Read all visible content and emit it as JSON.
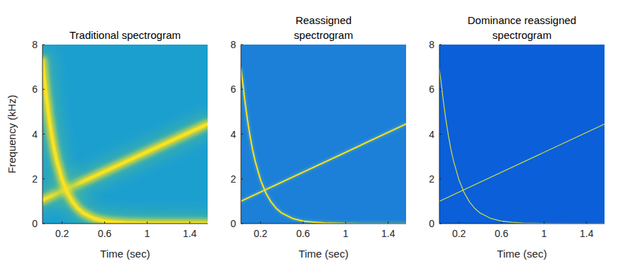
{
  "chart_data": [
    {
      "type": "line",
      "title": "Traditional spectrogram",
      "xlabel": "Time (sec)",
      "ylabel": "Frequency (kHz)",
      "xlim": [
        0.016,
        1.568
      ],
      "xticks": [
        0.2,
        0.6,
        1,
        1.4
      ],
      "ylim": [
        0,
        8
      ],
      "yticks": [
        0,
        2,
        4,
        6,
        8
      ],
      "grid": false,
      "series": [
        {
          "color": "#f9e21f",
          "x": [
            0.016,
            1.568
          ],
          "values": [
            1.05,
            4.45
          ]
        },
        {
          "color": "#f9e21f",
          "x": [
            0.016,
            0.03,
            0.05,
            0.075,
            0.1,
            0.125,
            0.15,
            0.2,
            0.25,
            0.3,
            0.35,
            0.4,
            0.5,
            0.6,
            0.7,
            0.8,
            1.0,
            1.2,
            1.568
          ],
          "values": [
            7.3,
            6.6,
            5.73,
            4.79,
            4.0,
            3.35,
            2.8,
            1.96,
            1.37,
            0.96,
            0.67,
            0.47,
            0.23,
            0.11,
            0.06,
            0.03,
            0.01,
            0,
            0
          ]
        }
      ]
    },
    {
      "type": "line",
      "title": "Reassigned spectrogram",
      "xlabel": "Time (sec)",
      "xlim": [
        0.016,
        1.568
      ],
      "xticks": [
        0.2,
        0.6,
        1,
        1.4
      ],
      "ylim": [
        0,
        8
      ],
      "yticks": [
        0,
        2,
        4,
        6,
        8
      ],
      "grid": false,
      "series": [
        {
          "color": "#f9e21f",
          "x": [
            0.016,
            1.568
          ],
          "values": [
            1.0,
            4.45
          ]
        },
        {
          "color": "#f9e21f",
          "x": [
            0.016,
            0.03,
            0.05,
            0.075,
            0.1,
            0.125,
            0.15,
            0.2,
            0.25,
            0.3,
            0.35,
            0.4,
            0.5,
            0.6,
            0.7,
            0.8,
            1.0,
            1.2,
            1.568
          ],
          "values": [
            6.9,
            6.4,
            5.6,
            4.7,
            3.95,
            3.3,
            2.78,
            1.95,
            1.37,
            0.96,
            0.67,
            0.47,
            0.23,
            0.11,
            0.06,
            0.03,
            0.01,
            0,
            0
          ]
        }
      ]
    },
    {
      "type": "line",
      "title": "Dominance reassigned spectrogram",
      "xlabel": "Time (sec)",
      "xlim": [
        0.016,
        1.568
      ],
      "xticks": [
        0.2,
        0.6,
        1,
        1.4
      ],
      "ylim": [
        0,
        8
      ],
      "yticks": [
        0,
        2,
        4,
        6,
        8
      ],
      "grid": false,
      "series": [
        {
          "color": "#c4d84a",
          "x": [
            0.016,
            1.568
          ],
          "values": [
            1.0,
            4.45
          ]
        },
        {
          "color": "#c4d84a",
          "x": [
            0.016,
            0.03,
            0.05,
            0.075,
            0.1,
            0.125,
            0.15,
            0.2,
            0.25,
            0.3,
            0.35,
            0.4,
            0.5,
            0.6,
            0.7,
            0.8,
            1.0,
            1.2,
            1.568
          ],
          "values": [
            6.9,
            6.4,
            5.6,
            4.7,
            3.95,
            3.3,
            2.78,
            1.95,
            1.37,
            0.96,
            0.67,
            0.47,
            0.23,
            0.11,
            0.06,
            0.03,
            0.01,
            0,
            0
          ]
        }
      ]
    }
  ]
}
